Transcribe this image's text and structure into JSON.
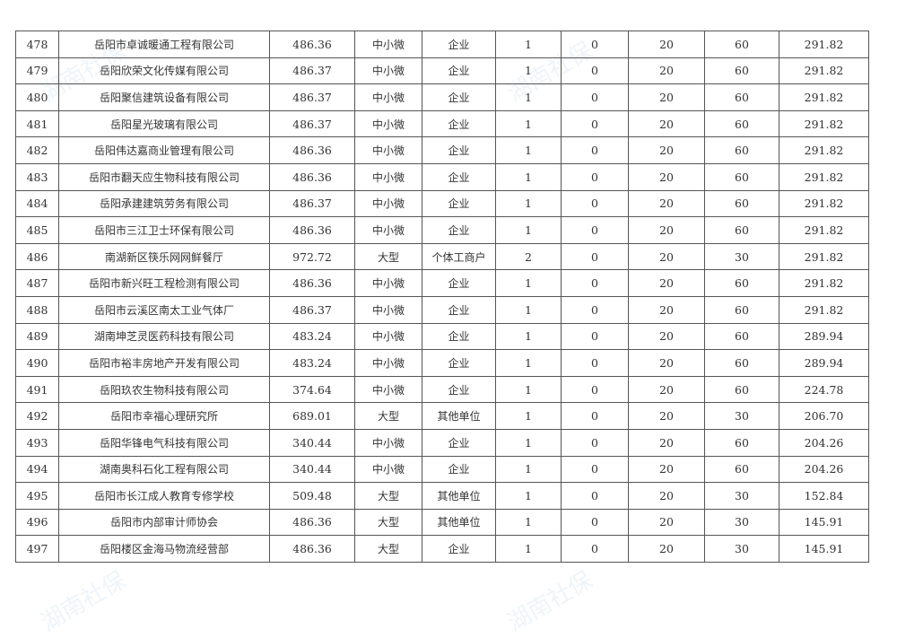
{
  "watermark": "湖南社保",
  "rows": [
    [
      "478",
      "岳阳市卓诚暖通工程有限公司",
      "486.36",
      "中小微",
      "企业",
      "1",
      "0",
      "20",
      "60",
      "291.82"
    ],
    [
      "479",
      "岳阳欣荣文化传媒有限公司",
      "486.37",
      "中小微",
      "企业",
      "1",
      "0",
      "20",
      "60",
      "291.82"
    ],
    [
      "480",
      "岳阳聚信建筑设备有限公司",
      "486.37",
      "中小微",
      "企业",
      "1",
      "0",
      "20",
      "60",
      "291.82"
    ],
    [
      "481",
      "岳阳星光玻璃有限公司",
      "486.37",
      "中小微",
      "企业",
      "1",
      "0",
      "20",
      "60",
      "291.82"
    ],
    [
      "482",
      "岳阳伟达嘉商业管理有限公司",
      "486.36",
      "中小微",
      "企业",
      "1",
      "0",
      "20",
      "60",
      "291.82"
    ],
    [
      "483",
      "岳阳市翻天应生物科技有限公司",
      "486.36",
      "中小微",
      "企业",
      "1",
      "0",
      "20",
      "60",
      "291.82"
    ],
    [
      "484",
      "岳阳承建建筑劳务有限公司",
      "486.37",
      "中小微",
      "企业",
      "1",
      "0",
      "20",
      "60",
      "291.82"
    ],
    [
      "485",
      "岳阳市三江卫士环保有限公司",
      "486.36",
      "中小微",
      "企业",
      "1",
      "0",
      "20",
      "60",
      "291.82"
    ],
    [
      "486",
      "南湖新区筷乐网网鲜餐厅",
      "972.72",
      "大型",
      "个体工商户",
      "2",
      "0",
      "20",
      "30",
      "291.82"
    ],
    [
      "487",
      "岳阳市新兴旺工程检测有限公司",
      "486.36",
      "中小微",
      "企业",
      "1",
      "0",
      "20",
      "60",
      "291.82"
    ],
    [
      "488",
      "岳阳市云溪区南太工业气体厂",
      "486.37",
      "中小微",
      "企业",
      "1",
      "0",
      "20",
      "60",
      "291.82"
    ],
    [
      "489",
      "湖南坤芝灵医药科技有限公司",
      "483.24",
      "中小微",
      "企业",
      "1",
      "0",
      "20",
      "60",
      "289.94"
    ],
    [
      "490",
      "岳阳市裕丰房地产开发有限公司",
      "483.24",
      "中小微",
      "企业",
      "1",
      "0",
      "20",
      "60",
      "289.94"
    ],
    [
      "491",
      "岳阳玖农生物科技有限公司",
      "374.64",
      "中小微",
      "企业",
      "1",
      "0",
      "20",
      "60",
      "224.78"
    ],
    [
      "492",
      "岳阳市幸福心理研究所",
      "689.01",
      "大型",
      "其他单位",
      "1",
      "0",
      "20",
      "30",
      "206.70"
    ],
    [
      "493",
      "岳阳华锋电气科技有限公司",
      "340.44",
      "中小微",
      "企业",
      "1",
      "0",
      "20",
      "60",
      "204.26"
    ],
    [
      "494",
      "湖南奥科石化工程有限公司",
      "340.44",
      "中小微",
      "企业",
      "1",
      "0",
      "20",
      "60",
      "204.26"
    ],
    [
      "495",
      "岳阳市长江成人教育专修学校",
      "509.48",
      "大型",
      "其他单位",
      "1",
      "0",
      "20",
      "30",
      "152.84"
    ],
    [
      "496",
      "岳阳市内部审计师协会",
      "486.36",
      "大型",
      "其他单位",
      "1",
      "0",
      "20",
      "30",
      "145.91"
    ],
    [
      "497",
      "岳阳楼区金海马物流经营部",
      "486.36",
      "大型",
      "企业",
      "1",
      "0",
      "20",
      "30",
      "145.91"
    ]
  ]
}
